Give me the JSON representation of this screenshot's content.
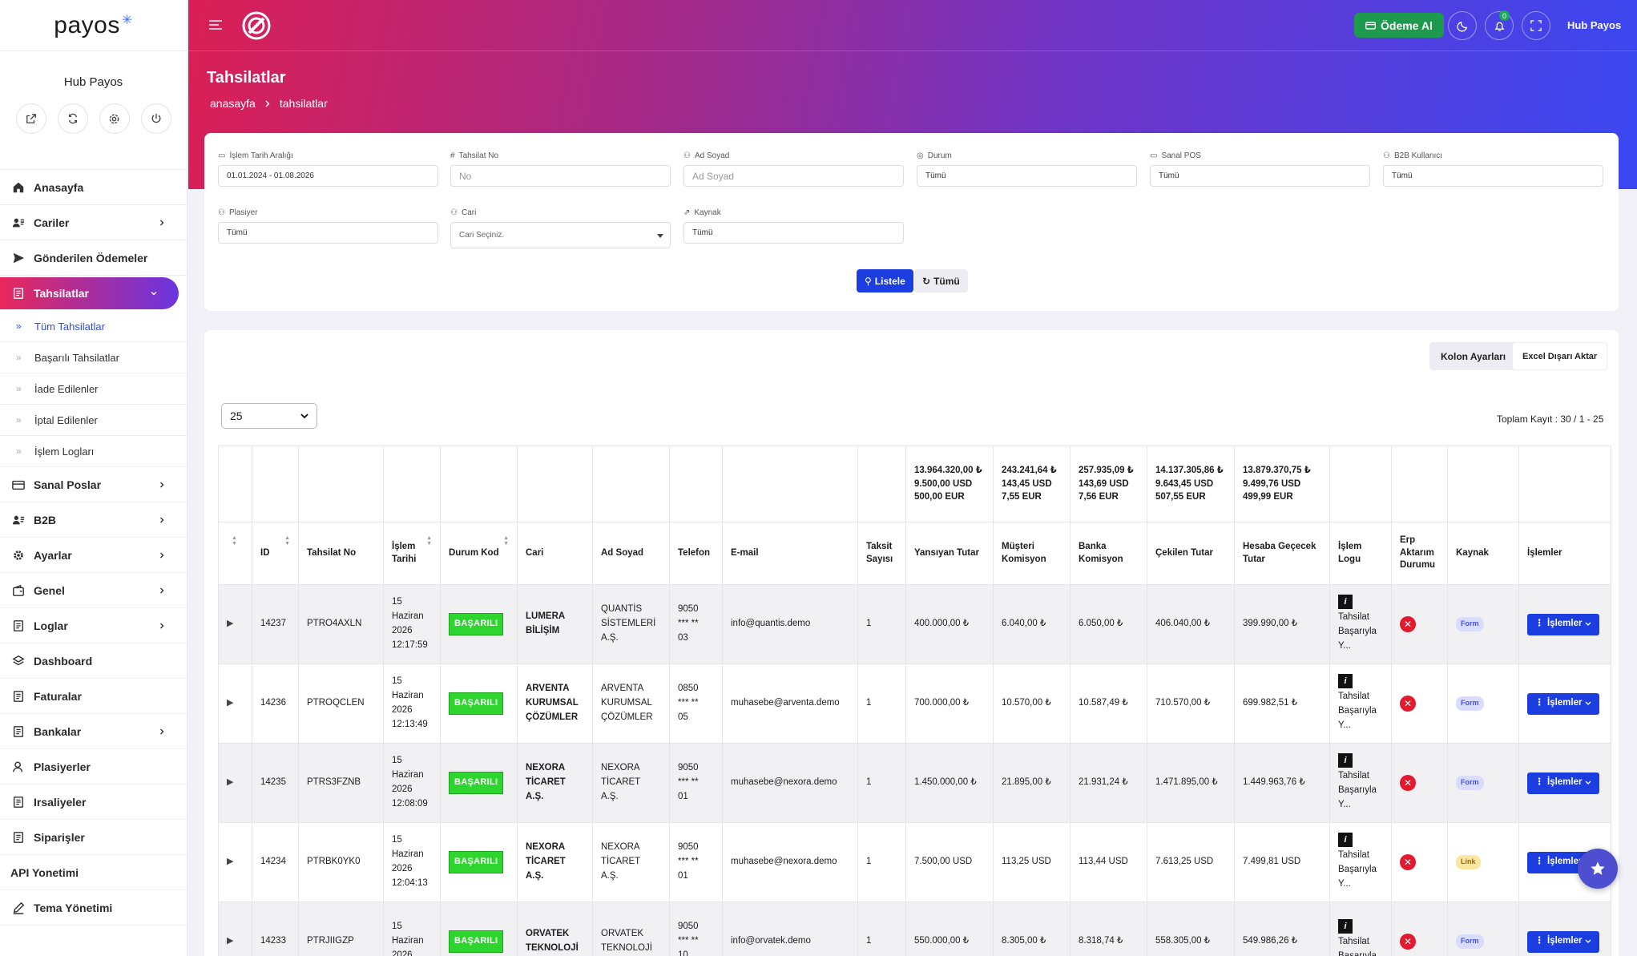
{
  "sidebar": {
    "logo": "payos",
    "user_name": "Hub Payos",
    "user_buttons": [
      "external-link-icon",
      "refresh-icon",
      "settings-icon",
      "power-icon"
    ],
    "items": [
      {
        "label": "Anasayfa",
        "icon": "home-icon",
        "chevron": false
      },
      {
        "label": "Cariler",
        "icon": "users-icon",
        "chevron": true
      },
      {
        "label": "Gönderilen Ödemeler",
        "icon": "send-icon",
        "chevron": false
      },
      {
        "label": "Tahsilatlar",
        "icon": "document-icon",
        "chevron": true,
        "active": true
      },
      {
        "label": "Sanal Poslar",
        "icon": "card-icon",
        "chevron": true
      },
      {
        "label": "B2B",
        "icon": "users-icon",
        "chevron": true
      },
      {
        "label": "Ayarlar",
        "icon": "gear-icon",
        "chevron": true
      },
      {
        "label": "Genel",
        "icon": "wallet-icon",
        "chevron": true
      },
      {
        "label": "Loglar",
        "icon": "document-icon",
        "chevron": true
      },
      {
        "label": "Dashboard",
        "icon": "layers-icon",
        "chevron": false
      },
      {
        "label": "Faturalar",
        "icon": "document-icon",
        "chevron": false
      },
      {
        "label": "Bankalar",
        "icon": "document-icon",
        "chevron": true
      },
      {
        "label": "Plasiyerler",
        "icon": "user-icon",
        "chevron": false
      },
      {
        "label": "Irsaliyeler",
        "icon": "document-icon",
        "chevron": false
      },
      {
        "label": "Siparişler",
        "icon": "document-icon",
        "chevron": false
      },
      {
        "label": "API Yonetimi",
        "icon": "",
        "chevron": false
      },
      {
        "label": "Tema Yönetimi",
        "icon": "pen-icon",
        "chevron": false
      }
    ],
    "subitems": [
      {
        "label": "Tüm Tahsilatlar",
        "active": true
      },
      {
        "label": "Başarılı Tahsilatlar"
      },
      {
        "label": "İade Edilenler"
      },
      {
        "label": "İptal Edilenler"
      },
      {
        "label": "İşlem Logları"
      }
    ]
  },
  "topbar": {
    "pay_button": "Ödeme Al",
    "notif_count": "0",
    "user": "Hub Payos"
  },
  "page": {
    "title": "Tahsilatlar",
    "breadcrumb": [
      "anasayfa",
      "tahsilatlar"
    ]
  },
  "filters": {
    "date_label": "İşlem Tarih Aralığı",
    "date_value": "01.01.2024 - 01.08.2026",
    "no_label": "Tahsilat No",
    "no_placeholder": "No",
    "name_label": "Ad Soyad",
    "name_placeholder": "Ad Soyad",
    "status_label": "Durum",
    "status_value": "Tümü",
    "pos_label": "Sanal POS",
    "pos_value": "Tümü",
    "b2b_label": "B2B Kullanıcı",
    "b2b_value": "Tümü",
    "plasiyer_label": "Plasiyer",
    "plasiyer_value": "Tümü",
    "cari_label": "Cari",
    "cari_placeholder": "Cari Seçiniz.",
    "source_label": "Kaynak",
    "source_value": "Tümü",
    "list_button": "Listele",
    "all_button": "Tümü"
  },
  "results": {
    "column_settings": "Kolon Ayarları",
    "excel_export": "Excel Dışarı Aktar",
    "page_size": "25",
    "total": "Toplam Kayıt : 30 / 1 - 25",
    "summary": {
      "yansiyan": [
        "13.964.320,00 ₺",
        "9.500,00 USD",
        "500,00 EUR"
      ],
      "musteri": [
        "243.241,64 ₺",
        "143,45 USD",
        "7,55 EUR"
      ],
      "banka": [
        "257.935,09 ₺",
        "143,69 USD",
        "7,56 EUR"
      ],
      "cekilen": [
        "14.137.305,86 ₺",
        "9.643,45 USD",
        "507,55 EUR"
      ],
      "hesaba": [
        "13.879.370,75 ₺",
        "9.499,76 USD",
        "499,99 EUR"
      ]
    },
    "columns": [
      "",
      "ID",
      "Tahsilat No",
      "İşlem Tarihi",
      "Durum Kod",
      "Cari",
      "Ad Soyad",
      "Telefon",
      "E-mail",
      "Taksit Sayısı",
      "Yansıyan Tutar",
      "Müşteri Komisyon",
      "Banka Komisyon",
      "Çekilen Tutar",
      "Hesaba Geçecek Tutar",
      "İşlem Logu",
      "Erp Aktarım Durumu",
      "Kaynak",
      "İşlemler"
    ],
    "rows": [
      {
        "id": "14237",
        "no": "PTRO4AXLN",
        "date": [
          "15",
          "Haziran",
          "2026",
          "12:17:59"
        ],
        "status": "BAŞARILI",
        "cari": [
          "LUMERA",
          "BİLİŞİM"
        ],
        "name": [
          "QUANTİS",
          "SİSTEMLERİ",
          "A.Ş."
        ],
        "phone": [
          "9050",
          "*** **",
          "03"
        ],
        "email": "info@quantis.demo",
        "taksit": "1",
        "yansiyan": "400.000,00 ₺",
        "musteri": "6.040,00 ₺",
        "banka": "6.050,00 ₺",
        "cekilen": "406.040,00 ₺",
        "hesaba": "399.990,00 ₺",
        "log_icon": "i",
        "log": [
          "Tahsilat",
          "Başarıyla",
          "Y..."
        ],
        "kaynak": "Form",
        "action": "İşlemler"
      },
      {
        "id": "14236",
        "no": "PTROQCLEN",
        "date": [
          "15",
          "Haziran",
          "2026",
          "12:13:49"
        ],
        "status": "BAŞARILI",
        "cari": [
          "ARVENTA",
          "KURUMSAL",
          "ÇÖZÜMLER"
        ],
        "name": [
          "ARVENTA",
          "KURUMSAL",
          "ÇÖZÜMLER"
        ],
        "phone": [
          "0850",
          "*** **",
          "05"
        ],
        "email": "muhasebe@arventa.demo",
        "taksit": "1",
        "yansiyan": "700.000,00 ₺",
        "musteri": "10.570,00 ₺",
        "banka": "10.587,49 ₺",
        "cekilen": "710.570,00 ₺",
        "hesaba": "699.982,51 ₺",
        "log_icon": "i",
        "log": [
          "Tahsilat",
          "Başarıyla",
          "Y..."
        ],
        "kaynak": "Form",
        "action": "İşlemler"
      },
      {
        "id": "14235",
        "no": "PTRS3FZNB",
        "date": [
          "15",
          "Haziran",
          "2026",
          "12:08:09"
        ],
        "status": "BAŞARILI",
        "cari": [
          "NEXORA",
          "TİCARET",
          "A.Ş."
        ],
        "name": [
          "NEXORA",
          "TİCARET",
          "A.Ş."
        ],
        "phone": [
          "9050",
          "*** **",
          "01"
        ],
        "email": "muhasebe@nexora.demo",
        "taksit": "1",
        "yansiyan": "1.450.000,00 ₺",
        "musteri": "21.895,00 ₺",
        "banka": "21.931,24 ₺",
        "cekilen": "1.471.895,00 ₺",
        "hesaba": "1.449.963,76 ₺",
        "log_icon": "i",
        "log": [
          "Tahsilat",
          "Başarıyla",
          "Y..."
        ],
        "kaynak": "Form",
        "action": "İşlemler"
      },
      {
        "id": "14234",
        "no": "PTRBK0YK0",
        "date": [
          "15",
          "Haziran",
          "2026",
          "12:04:13"
        ],
        "status": "BAŞARILI",
        "cari": [
          "NEXORA",
          "TİCARET",
          "A.Ş."
        ],
        "name": [
          "NEXORA",
          "TİCARET",
          "A.Ş."
        ],
        "phone": [
          "9050",
          "*** **",
          "01"
        ],
        "email": "muhasebe@nexora.demo",
        "taksit": "1",
        "yansiyan": "7.500,00 USD",
        "musteri": "113,25 USD",
        "banka": "113,44 USD",
        "cekilen": "7.613,25 USD",
        "hesaba": "7.499,81 USD",
        "log_icon": "i",
        "log": [
          "Tahsilat",
          "Başarıyla",
          "Y..."
        ],
        "kaynak": "Link",
        "action": "İşlemler"
      },
      {
        "id": "14233",
        "no": "PTRJIIGZP",
        "date": [
          "15",
          "Haziran",
          "2026"
        ],
        "status": "BAŞARILI",
        "cari": [
          "ORVATEK",
          "TEKNOLOJİ"
        ],
        "name": [
          "ORVATEK",
          "TEKNOLOJİ"
        ],
        "phone": [
          "9050",
          "*** **",
          "10"
        ],
        "email": "info@orvatek.demo",
        "taksit": "1",
        "yansiyan": "550.000,00 ₺",
        "musteri": "8.305,00 ₺",
        "banka": "8.318,74 ₺",
        "cekilen": "558.305,00 ₺",
        "hesaba": "549.986,26 ₺",
        "log_icon": "i",
        "log": [
          "Tahsilat",
          "Başarıyla"
        ],
        "kaynak": "Form",
        "action": "İşlemler"
      }
    ]
  },
  "colors": {
    "accent": "#1c3ee0",
    "success": "#2fd52f",
    "danger": "#e3192e",
    "pay": "#1e9a4e"
  }
}
